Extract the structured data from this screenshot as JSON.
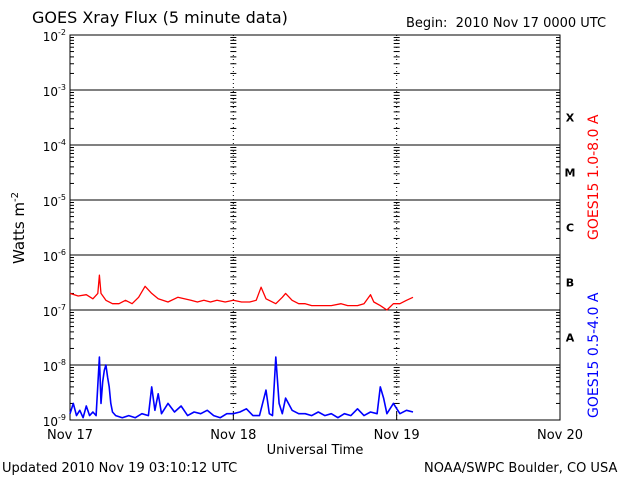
{
  "header": {
    "title": "GOES Xray Flux (5 minute data)",
    "begin_label": "Begin:",
    "begin_value": "2010 Nov 17 0000 UTC"
  },
  "footer": {
    "updated": "Updated 2010 Nov 19 03:10:12 UTC",
    "credit": "NOAA/SWPC Boulder, CO USA"
  },
  "chart_data": {
    "type": "line",
    "title": "GOES Xray Flux (5 minute data)",
    "xlabel": "Universal Time",
    "ylabel": "Watts m",
    "ylabel_sup": "-2",
    "y_scale": "log",
    "ylim": [
      1e-09,
      0.01
    ],
    "x_unit": "days since Nov 17 0000 UTC",
    "xlim": [
      0,
      3
    ],
    "x_ticks": [
      {
        "x": 0,
        "label": "Nov 17"
      },
      {
        "x": 1,
        "label": "Nov 18"
      },
      {
        "x": 2,
        "label": "Nov 19"
      },
      {
        "x": 3,
        "label": "Nov 20"
      }
    ],
    "y_ticks": [
      {
        "exp": -2,
        "base": "10",
        "sup": "-2"
      },
      {
        "exp": -3,
        "base": "10",
        "sup": "-3"
      },
      {
        "exp": -4,
        "base": "10",
        "sup": "-4"
      },
      {
        "exp": -5,
        "base": "10",
        "sup": "-5"
      },
      {
        "exp": -6,
        "base": "10",
        "sup": "-6"
      },
      {
        "exp": -7,
        "base": "10",
        "sup": "-7"
      },
      {
        "exp": -8,
        "base": "10",
        "sup": "-8"
      },
      {
        "exp": -9,
        "base": "10",
        "sup": "-9"
      }
    ],
    "flare_classes": [
      {
        "label": "X",
        "exp": -4
      },
      {
        "label": "M",
        "exp": -5
      },
      {
        "label": "C",
        "exp": -6
      },
      {
        "label": "B",
        "exp": -7
      },
      {
        "label": "A",
        "exp": -8
      }
    ],
    "grid": {
      "horizontal": "solid at decades",
      "vertical": "dashed at day boundaries"
    },
    "legend_placement": "right (vertical labels)",
    "series": [
      {
        "name": "GOES15 1.0-8.0 A",
        "color": "#ff0000",
        "x": [
          0.0,
          0.05,
          0.1,
          0.14,
          0.17,
          0.18,
          0.19,
          0.22,
          0.26,
          0.3,
          0.34,
          0.38,
          0.42,
          0.46,
          0.5,
          0.54,
          0.6,
          0.66,
          0.7,
          0.74,
          0.78,
          0.82,
          0.86,
          0.9,
          0.95,
          1.0,
          1.05,
          1.1,
          1.14,
          1.17,
          1.2,
          1.26,
          1.3,
          1.32,
          1.36,
          1.4,
          1.44,
          1.48,
          1.52,
          1.56,
          1.6,
          1.66,
          1.7,
          1.76,
          1.8,
          1.84,
          1.86,
          1.9,
          1.94,
          1.98,
          2.02,
          2.06,
          2.1
        ],
        "y": [
          2e-07,
          1.8e-07,
          1.9e-07,
          1.6e-07,
          2e-07,
          4.3e-07,
          2e-07,
          1.5e-07,
          1.3e-07,
          1.3e-07,
          1.5e-07,
          1.3e-07,
          1.7e-07,
          2.7e-07,
          2e-07,
          1.6e-07,
          1.4e-07,
          1.7e-07,
          1.6e-07,
          1.5e-07,
          1.4e-07,
          1.5e-07,
          1.4e-07,
          1.5e-07,
          1.4e-07,
          1.5e-07,
          1.4e-07,
          1.4e-07,
          1.5e-07,
          2.6e-07,
          1.6e-07,
          1.3e-07,
          1.7e-07,
          2e-07,
          1.5e-07,
          1.3e-07,
          1.3e-07,
          1.2e-07,
          1.2e-07,
          1.2e-07,
          1.2e-07,
          1.3e-07,
          1.2e-07,
          1.2e-07,
          1.3e-07,
          1.9e-07,
          1.4e-07,
          1.2e-07,
          1e-07,
          1.3e-07,
          1.3e-07,
          1.5e-07,
          1.7e-07
        ]
      },
      {
        "name": "GOES15 0.5-4.0 A",
        "color": "#0000ff",
        "x": [
          0.0,
          0.02,
          0.04,
          0.06,
          0.08,
          0.1,
          0.12,
          0.14,
          0.16,
          0.18,
          0.19,
          0.2,
          0.21,
          0.22,
          0.23,
          0.24,
          0.25,
          0.26,
          0.28,
          0.32,
          0.36,
          0.4,
          0.44,
          0.48,
          0.5,
          0.52,
          0.54,
          0.56,
          0.6,
          0.64,
          0.68,
          0.72,
          0.76,
          0.8,
          0.84,
          0.88,
          0.92,
          0.96,
          1.0,
          1.04,
          1.08,
          1.12,
          1.16,
          1.2,
          1.22,
          1.24,
          1.26,
          1.28,
          1.3,
          1.32,
          1.36,
          1.4,
          1.44,
          1.48,
          1.52,
          1.56,
          1.6,
          1.64,
          1.68,
          1.72,
          1.76,
          1.8,
          1.84,
          1.88,
          1.9,
          1.92,
          1.94,
          1.98,
          2.02,
          2.06,
          2.1
        ],
        "y": [
          1.3e-09,
          2e-09,
          1.2e-09,
          1.5e-09,
          1.1e-09,
          1.8e-09,
          1.2e-09,
          1.4e-09,
          1.2e-09,
          1.4e-08,
          2e-09,
          5e-09,
          8e-09,
          1e-08,
          6e-09,
          4e-09,
          2e-09,
          1.4e-09,
          1.2e-09,
          1.1e-09,
          1.2e-09,
          1.1e-09,
          1.3e-09,
          1.2e-09,
          4e-09,
          1.5e-09,
          3e-09,
          1.3e-09,
          2e-09,
          1.4e-09,
          1.8e-09,
          1.2e-09,
          1.4e-09,
          1.3e-09,
          1.5e-09,
          1.2e-09,
          1.1e-09,
          1.3e-09,
          1.3e-09,
          1.4e-09,
          1.6e-09,
          1.2e-09,
          1.2e-09,
          3.5e-09,
          1.3e-09,
          1.2e-09,
          1.4e-08,
          2e-09,
          1.3e-09,
          2.5e-09,
          1.5e-09,
          1.3e-09,
          1.3e-09,
          1.2e-09,
          1.4e-09,
          1.2e-09,
          1.3e-09,
          1.1e-09,
          1.3e-09,
          1.2e-09,
          1.6e-09,
          1.2e-09,
          1.4e-09,
          1.3e-09,
          4e-09,
          2.5e-09,
          1.3e-09,
          2e-09,
          1.3e-09,
          1.5e-09,
          1.4e-09
        ]
      }
    ]
  }
}
